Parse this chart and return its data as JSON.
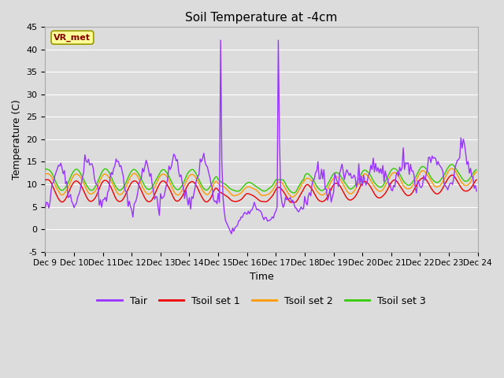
{
  "title": "Soil Temperature at -4cm",
  "xlabel": "Time",
  "ylabel": "Temperature (C)",
  "ylim": [
    -5,
    45
  ],
  "yticks": [
    -5,
    0,
    5,
    10,
    15,
    20,
    25,
    30,
    35,
    40,
    45
  ],
  "xlim": [
    0,
    360
  ],
  "xtick_labels": [
    "Dec 9",
    "Dec 10",
    "Dec 11",
    "Dec 12",
    "Dec 13",
    "Dec 14",
    "Dec 15",
    "Dec 16",
    "Dec 17",
    "Dec 18",
    "Dec 19",
    "Dec 20",
    "Dec 21",
    "Dec 22",
    "Dec 23",
    "Dec 24"
  ],
  "xtick_positions": [
    0,
    24,
    48,
    72,
    96,
    120,
    144,
    168,
    192,
    216,
    240,
    264,
    288,
    312,
    336,
    360
  ],
  "background_color": "#dcdcdc",
  "line_colors": {
    "Tair": "#9933ff",
    "Tsoil1": "#ee0000",
    "Tsoil2": "#ff9900",
    "Tsoil3": "#33cc00"
  },
  "annotation_text": "VR_met",
  "annotation_bg": "#ffff99",
  "annotation_border": "#999900",
  "annotation_text_color": "#880000",
  "legend_labels": [
    "Tair",
    "Tsoil set 1",
    "Tsoil set 2",
    "Tsoil set 3"
  ],
  "fig_width": 6.4,
  "fig_height": 4.8,
  "dpi": 100
}
